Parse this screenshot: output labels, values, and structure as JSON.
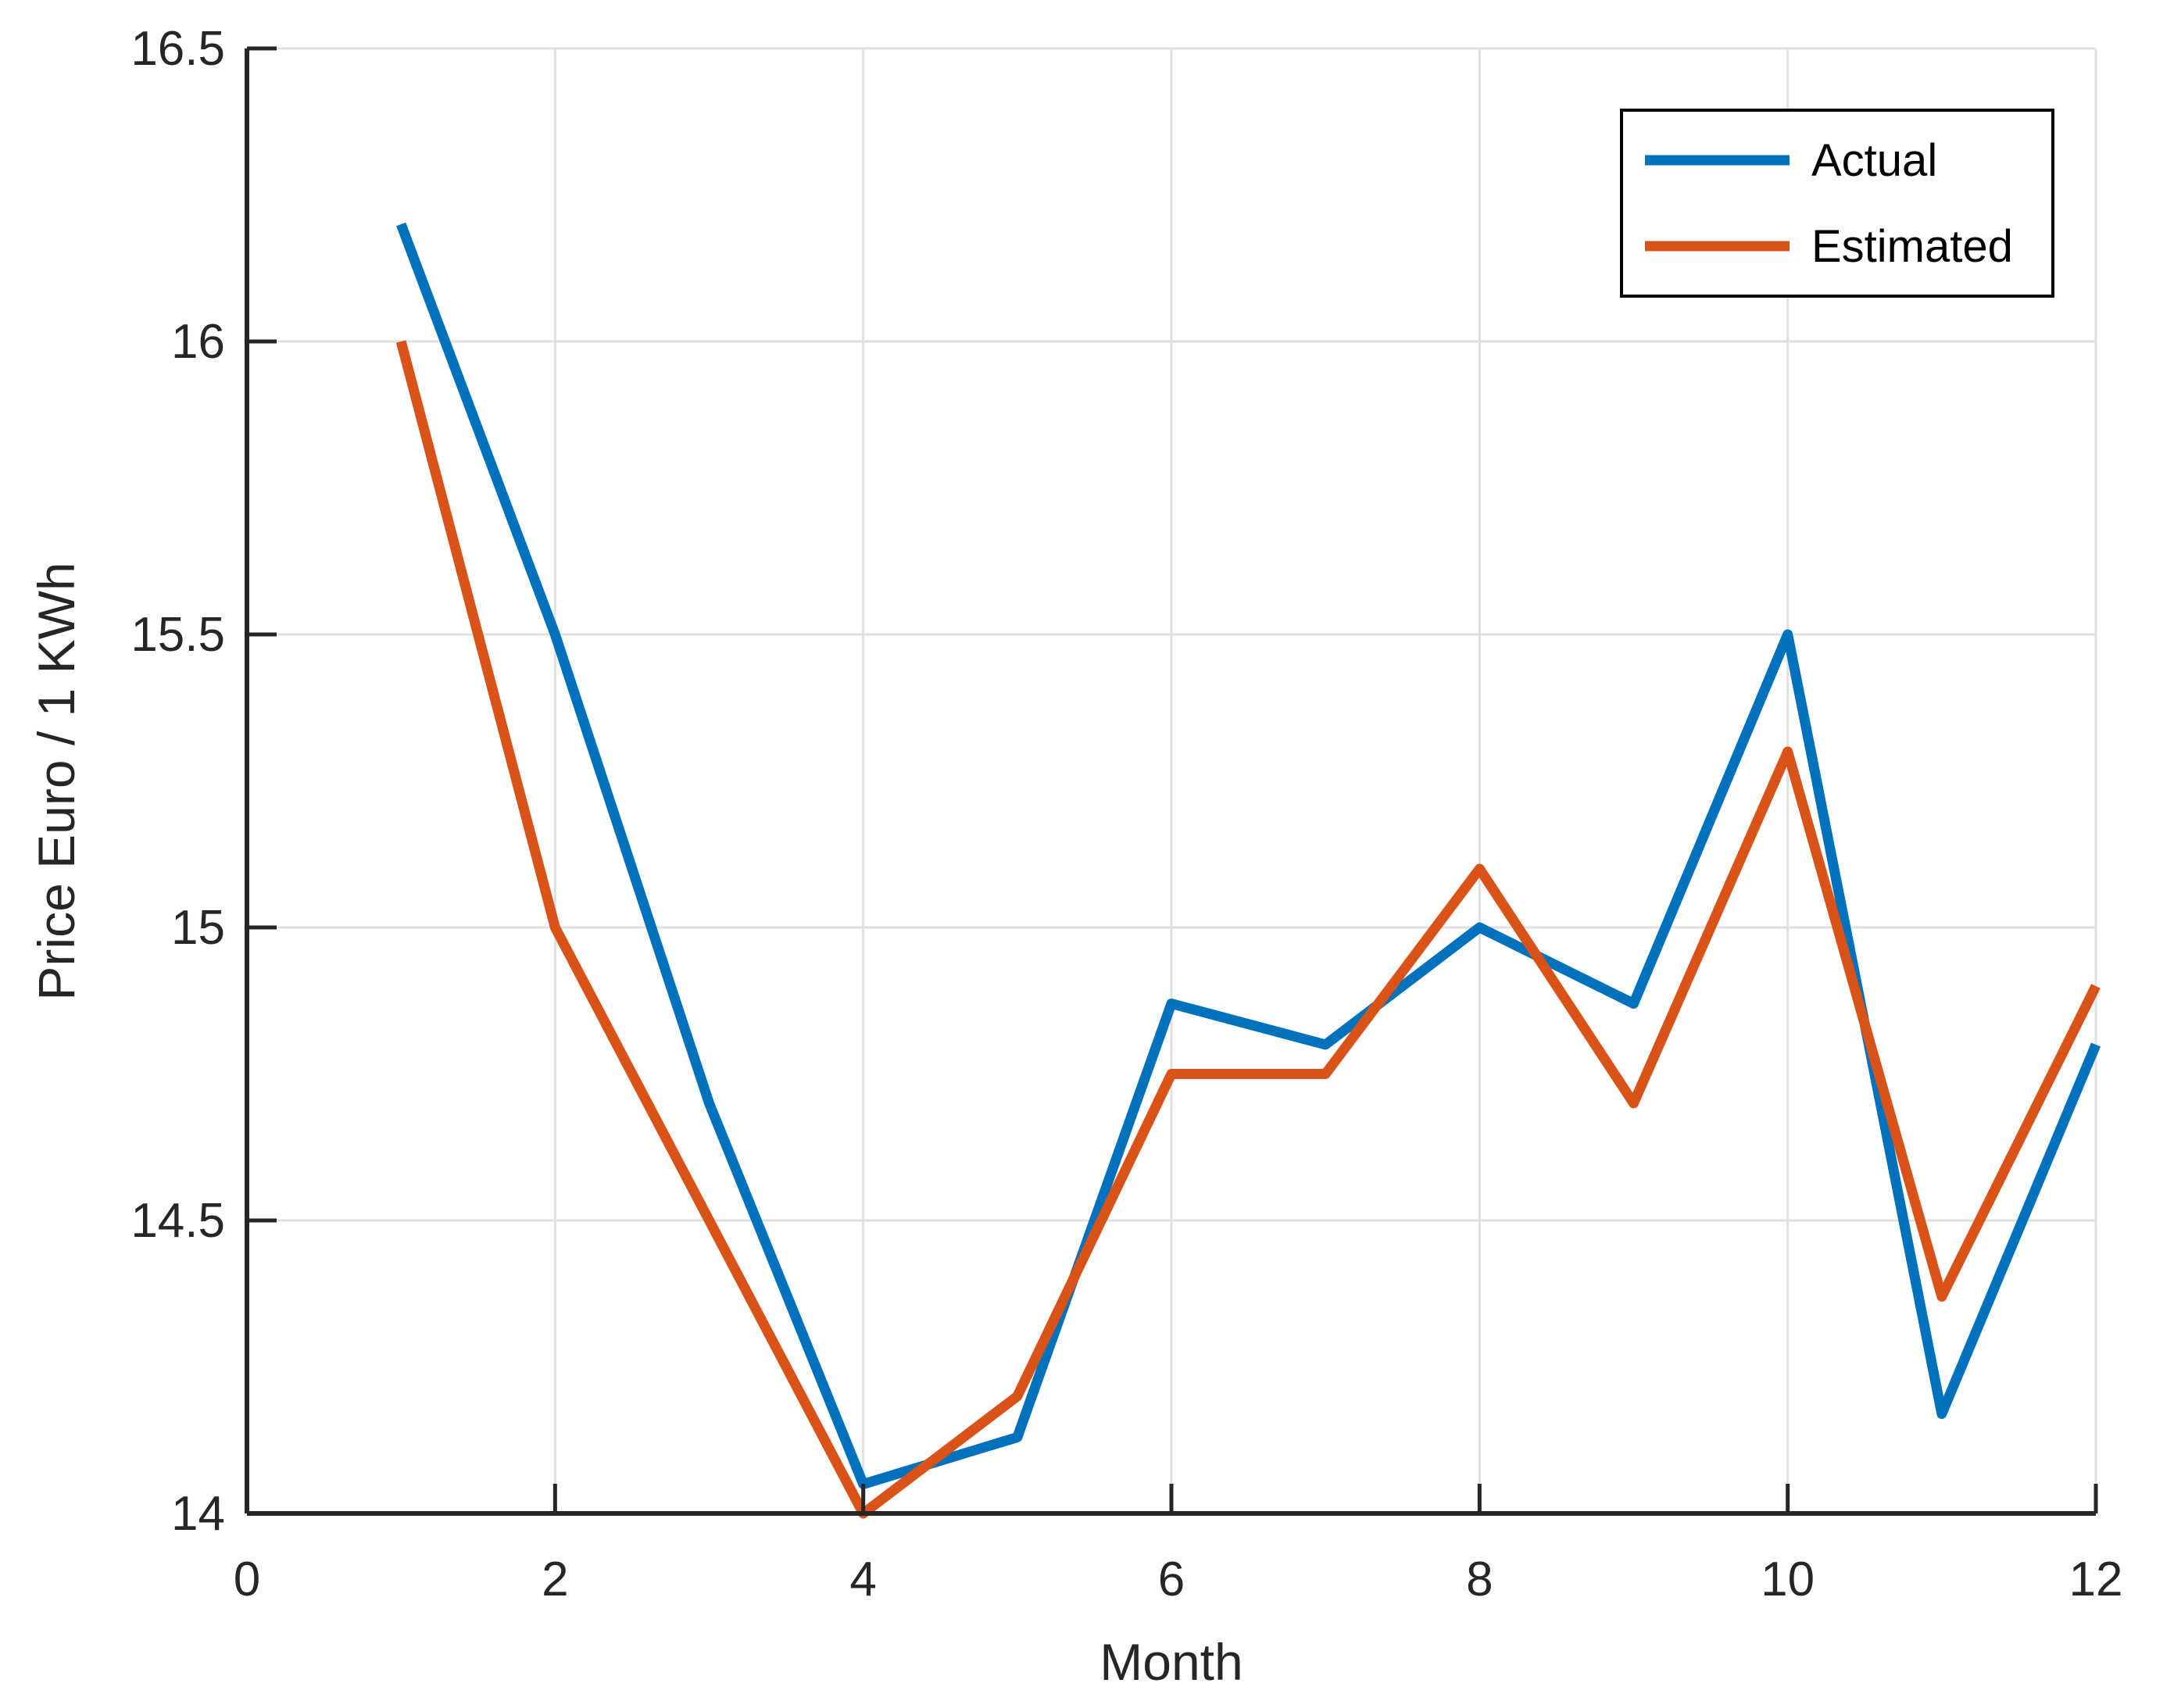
{
  "figure": {
    "background": "#ffffff"
  },
  "chart_data": {
    "type": "line",
    "x": [
      1,
      2,
      3,
      4,
      5,
      6,
      7,
      8,
      9,
      10,
      11,
      12
    ],
    "series": [
      {
        "name": "Actual",
        "color": "#0072BD",
        "values": [
          16.2,
          15.5,
          14.7,
          14.05,
          14.13,
          14.87,
          14.8,
          15.0,
          14.87,
          15.5,
          14.17,
          14.8
        ]
      },
      {
        "name": "Estimated",
        "color": "#D95319",
        "values": [
          16.0,
          15.0,
          14.5,
          14.0,
          14.2,
          14.75,
          14.75,
          15.1,
          14.7,
          15.3,
          14.37,
          14.9
        ]
      }
    ],
    "title": "",
    "xlabel": "Month",
    "ylabel": "Price Euro / 1 KWh",
    "xlim": [
      0,
      12
    ],
    "ylim": [
      14,
      16.5
    ],
    "xticks": [
      0,
      2,
      4,
      6,
      8,
      10,
      12
    ],
    "xtick_labels": [
      "0",
      "2",
      "4",
      "6",
      "8",
      "10",
      "12"
    ],
    "yticks": [
      14,
      14.5,
      15,
      15.5,
      16,
      16.5
    ],
    "ytick_labels": [
      "14",
      "14.5",
      "15",
      "15.5",
      "16",
      "16.5"
    ],
    "grid": true,
    "legend": {
      "position": "top-right",
      "entries": [
        "Actual",
        "Estimated"
      ]
    },
    "colors": {
      "grid_line": "#e0e0e0",
      "axis_line": "#262626",
      "tick_text": "#262626",
      "legend_border": "#000000",
      "legend_background": "#ffffff"
    }
  }
}
